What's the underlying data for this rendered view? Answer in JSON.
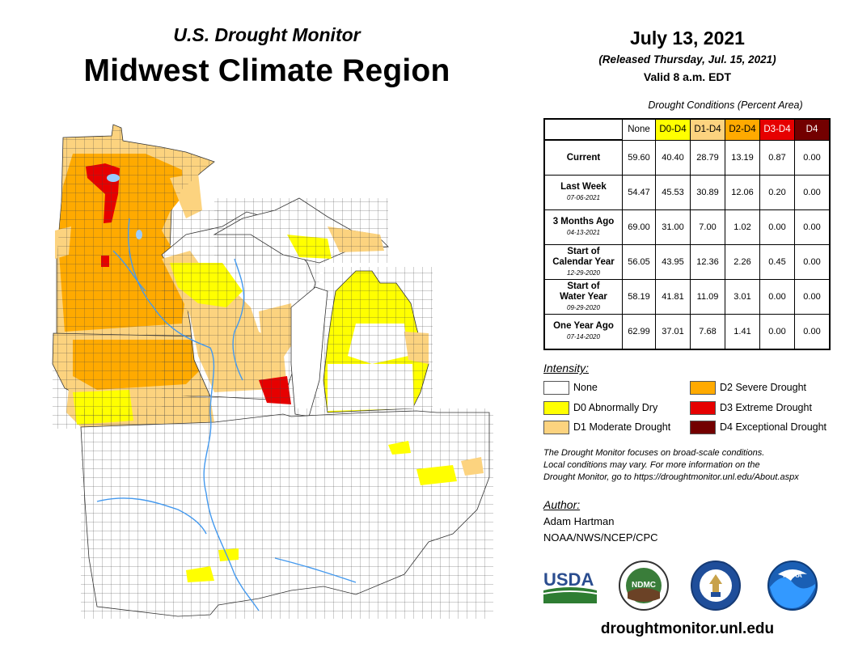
{
  "header": {
    "title_line1": "U.S. Drought Monitor",
    "title_line2": "Midwest Climate Region",
    "date": "July 13, 2021",
    "released": "(Released Thursday, Jul. 15, 2021)",
    "valid": "Valid 8 a.m. EDT"
  },
  "table": {
    "caption": "Drought Conditions (Percent Area)",
    "columns": [
      "None",
      "D0-D4",
      "D1-D4",
      "D2-D4",
      "D3-D4",
      "D4"
    ],
    "rows": [
      {
        "label": "Current",
        "date": "",
        "values": [
          "59.60",
          "40.40",
          "28.79",
          "13.19",
          "0.87",
          "0.00"
        ]
      },
      {
        "label": "Last Week",
        "date": "07-06-2021",
        "values": [
          "54.47",
          "45.53",
          "30.89",
          "12.06",
          "0.20",
          "0.00"
        ]
      },
      {
        "label": "3 Months Ago",
        "date": "04-13-2021",
        "values": [
          "69.00",
          "31.00",
          "7.00",
          "1.02",
          "0.00",
          "0.00"
        ]
      },
      {
        "label_line1": "Start of",
        "label_line2": "Calendar Year",
        "date": "12-29-2020",
        "values": [
          "56.05",
          "43.95",
          "12.36",
          "2.26",
          "0.45",
          "0.00"
        ]
      },
      {
        "label_line1": "Start of",
        "label_line2": "Water Year",
        "date": "09-29-2020",
        "values": [
          "58.19",
          "41.81",
          "11.09",
          "3.01",
          "0.00",
          "0.00"
        ]
      },
      {
        "label": "One Year Ago",
        "date": "07-14-2020",
        "values": [
          "62.99",
          "37.01",
          "7.68",
          "1.41",
          "0.00",
          "0.00"
        ]
      }
    ]
  },
  "legend": {
    "title": "Intensity:",
    "items": [
      {
        "label": "None",
        "color": "#ffffff"
      },
      {
        "label": "D0 Abnormally Dry",
        "color": "#ffff00"
      },
      {
        "label": "D1 Moderate Drought",
        "color": "#fcd37f"
      },
      {
        "label": "D2 Severe Drought",
        "color": "#ffaa00"
      },
      {
        "label": "D3 Extreme Drought",
        "color": "#e60000"
      },
      {
        "label": "D4 Exceptional Drought",
        "color": "#730000"
      }
    ]
  },
  "note": {
    "line1": "The Drought Monitor focuses on broad-scale conditions.",
    "line2": "Local conditions may vary. For more information on the",
    "line3": "Drought Monitor, go to https://droughtmonitor.unl.edu/About.aspx"
  },
  "author": {
    "title": "Author:",
    "name": "Adam Hartman",
    "org": "NOAA/NWS/NCEP/CPC"
  },
  "logos": {
    "usda": "USDA",
    "ndmc": "NDMC",
    "noaa": "NOAA"
  },
  "footer": {
    "website": "droughtmonitor.unl.edu"
  },
  "colors": {
    "none": "#ffffff",
    "d0": "#ffff00",
    "d1": "#fcd37f",
    "d2": "#ffaa00",
    "d3": "#e60000",
    "d4": "#730000",
    "water": "#99ccff",
    "river": "#4499ee"
  }
}
